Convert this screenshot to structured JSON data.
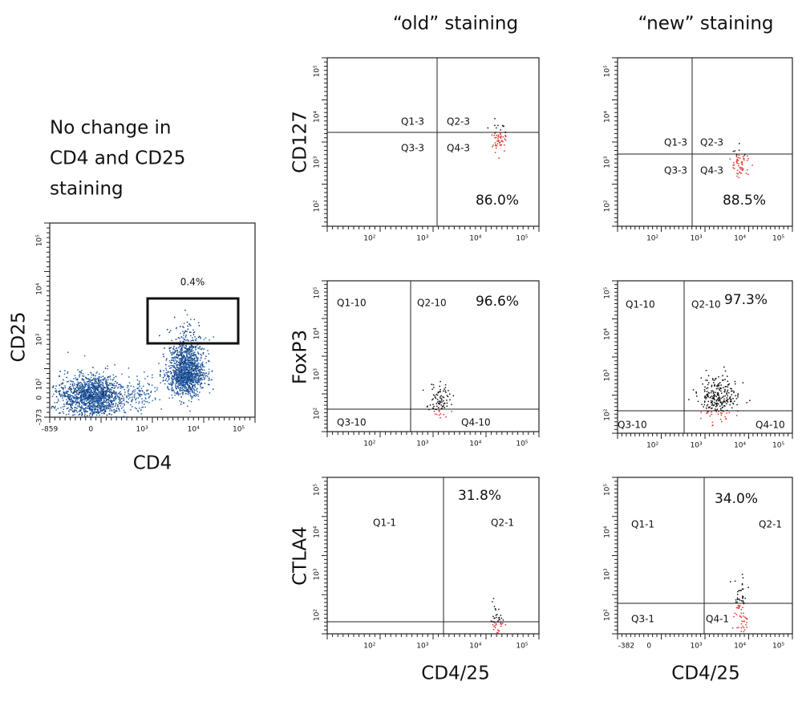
{
  "column_headers": [
    "“old” staining",
    "“new” staining"
  ],
  "note": [
    "No change in",
    "CD4 and CD25",
    "staining"
  ],
  "gating_plot": {
    "y_label": "CD25",
    "x_label": "CD4",
    "gate_label": "0.4%",
    "yticks": [
      "10⁵",
      "10⁴",
      "10³",
      "10²",
      "0",
      "-373"
    ],
    "xticks": [
      "-859",
      "0",
      "10³",
      "10⁴",
      "10⁵"
    ]
  },
  "rows": [
    {
      "label": "CD127",
      "panels": [
        {
          "quadrants": [
            "Q1-3",
            "Q2-3",
            "Q3-3",
            "Q4-3"
          ],
          "percent": "86.0%",
          "xticks": [
            "10²",
            "10³",
            "10⁴",
            "10⁵"
          ],
          "yticks": [
            "10⁵",
            "10⁴",
            "10³",
            "10²"
          ]
        },
        {
          "quadrants": [
            "Q1-3",
            "Q2-3",
            "Q3-3",
            "Q4-3"
          ],
          "percent": "88.5%",
          "xticks": [
            "10²",
            "10³",
            "10⁴",
            "10⁵"
          ],
          "yticks": [
            "10⁵",
            "10⁴",
            "10³",
            "10²"
          ]
        }
      ]
    },
    {
      "label": "FoxP3",
      "panels": [
        {
          "quadrants": [
            "Q1-10",
            "Q2-10",
            "Q3-10",
            "Q4-10"
          ],
          "percent": "96.6%",
          "xticks": [
            "10²",
            "10³",
            "10⁴",
            "10⁵"
          ],
          "yticks": [
            "10⁵",
            "10⁴",
            "10³",
            "10²"
          ]
        },
        {
          "quadrants": [
            "Q1-10",
            "Q2-10",
            "Q3-10",
            "Q4-10"
          ],
          "percent": "97.3%",
          "xticks": [
            "10²",
            "10³",
            "10⁴",
            "10⁵"
          ],
          "yticks": [
            "10⁵",
            "10⁴",
            "10³",
            "10²"
          ]
        }
      ]
    },
    {
      "label": "CTLA4",
      "panels": [
        {
          "quadrants": [
            "Q1-1",
            "Q2-1"
          ],
          "percent": "31.8%",
          "xticks": [
            "10²",
            "10³",
            "10⁴",
            "10⁵"
          ],
          "yticks": [
            "10⁵",
            "10⁴",
            "10³",
            "10²"
          ]
        },
        {
          "quadrants": [
            "Q1-1",
            "Q2-1",
            "Q3-1",
            "Q4-1"
          ],
          "percent": "34.0%",
          "xticks": [
            "-382",
            "0",
            "10³",
            "10⁴",
            "10⁵"
          ],
          "yticks": [
            "10⁵",
            "10⁴",
            "10³",
            "10²"
          ]
        }
      ]
    }
  ],
  "x_labels": [
    "CD4/25",
    "CD4/25"
  ]
}
